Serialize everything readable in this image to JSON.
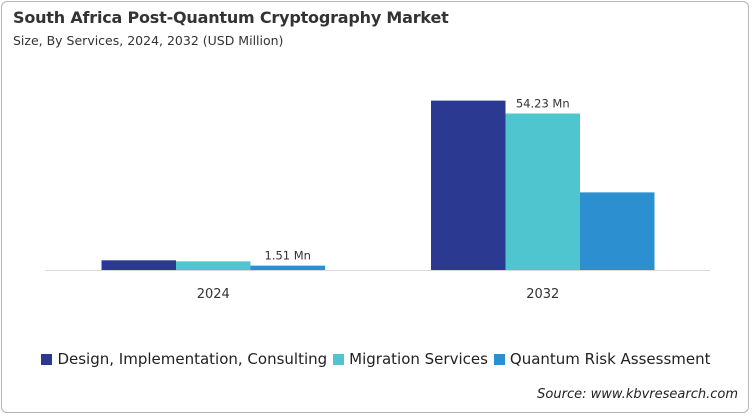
{
  "chart_data": {
    "type": "bar",
    "title": "South Africa Post-Quantum Cryptography Market",
    "subtitle": "Size, By Services, 2024, 2032 (USD Million)",
    "categories": [
      "2024",
      "2032"
    ],
    "series": [
      {
        "name": "Design, Implementation, Consulting",
        "color": "#2b3990",
        "values": [
          3.36,
          58.7
        ]
      },
      {
        "name": "Migration Services",
        "color": "#4fc5cf",
        "values": [
          3.0,
          54.23
        ]
      },
      {
        "name": "Quantum Risk Assessment",
        "color": "#2b8fd0",
        "values": [
          1.51,
          26.9
        ]
      }
    ],
    "data_labels": [
      {
        "series": 2,
        "category": 0,
        "text": "1.51 Mn"
      },
      {
        "series": 1,
        "category": 1,
        "text": "54.23 Mn"
      }
    ],
    "ylim": [
      0,
      70
    ],
    "grid": false,
    "legend_position": "bottom",
    "xlabel": "",
    "ylabel": ""
  },
  "source": "Source: www.kbvresearch.com"
}
